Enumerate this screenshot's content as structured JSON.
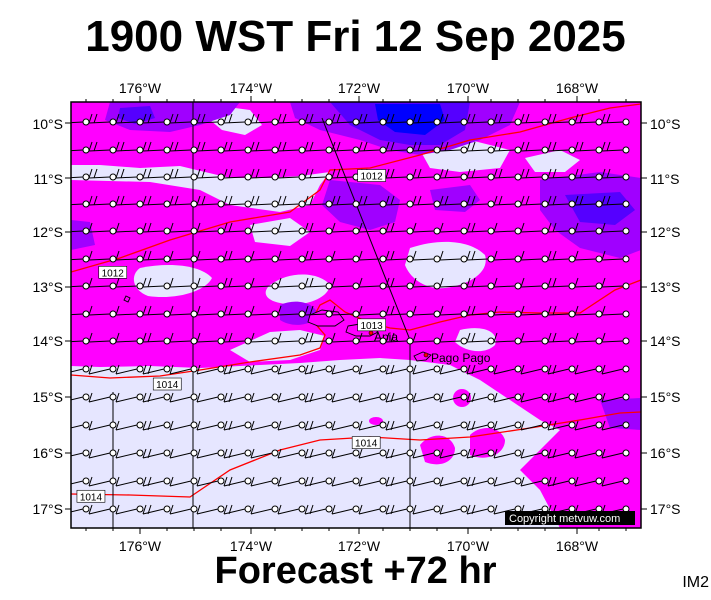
{
  "title": "1900 WST Fri 12 Sep 2025",
  "subtitle": "Forecast +72 hr",
  "corner_code": "IM2",
  "copyright": "Copyright metvuw.com",
  "lon_labels": [
    "176°W",
    "174°W",
    "172°W",
    "170°W",
    "168°W"
  ],
  "lat_labels": [
    "10°S",
    "11°S",
    "12°S",
    "13°S",
    "14°S",
    "15°S",
    "16°S",
    "17°S"
  ],
  "places": [
    {
      "name": "Apia",
      "lon": -171.75,
      "lat": -13.83
    },
    {
      "name": "Pago Pago",
      "lon": -170.7,
      "lat": -14.28
    }
  ],
  "isobars": [
    {
      "label": "1012",
      "kind": "northern"
    },
    {
      "label": "1013",
      "kind": "middle"
    },
    {
      "label": "1014",
      "kind": "southern"
    }
  ],
  "isobar_labels": [
    {
      "text": "1012",
      "lon": -171.75,
      "lat": -10.95
    },
    {
      "text": "1012",
      "lon": -176.5,
      "lat": -12.7
    },
    {
      "text": "1013",
      "lon": -171.75,
      "lat": -13.65
    },
    {
      "text": "1014",
      "lon": -175.5,
      "lat": -14.72
    },
    {
      "text": "1014",
      "lon": -171.85,
      "lat": -15.78
    },
    {
      "text": "1014",
      "lon": -176.9,
      "lat": -16.75
    }
  ],
  "colors": {
    "calm": "#e6e6ff",
    "moderate": "#ff00ff",
    "strong": "#a000ff",
    "very_strong": "#5500ff",
    "extreme": "#0000ff",
    "isobar": "#ff0000",
    "wind_barb": "#000000"
  },
  "map_extent": {
    "lon_min": -177.3,
    "lon_max": -166.9,
    "lat_min": -17.3,
    "lat_max": -9.65
  }
}
